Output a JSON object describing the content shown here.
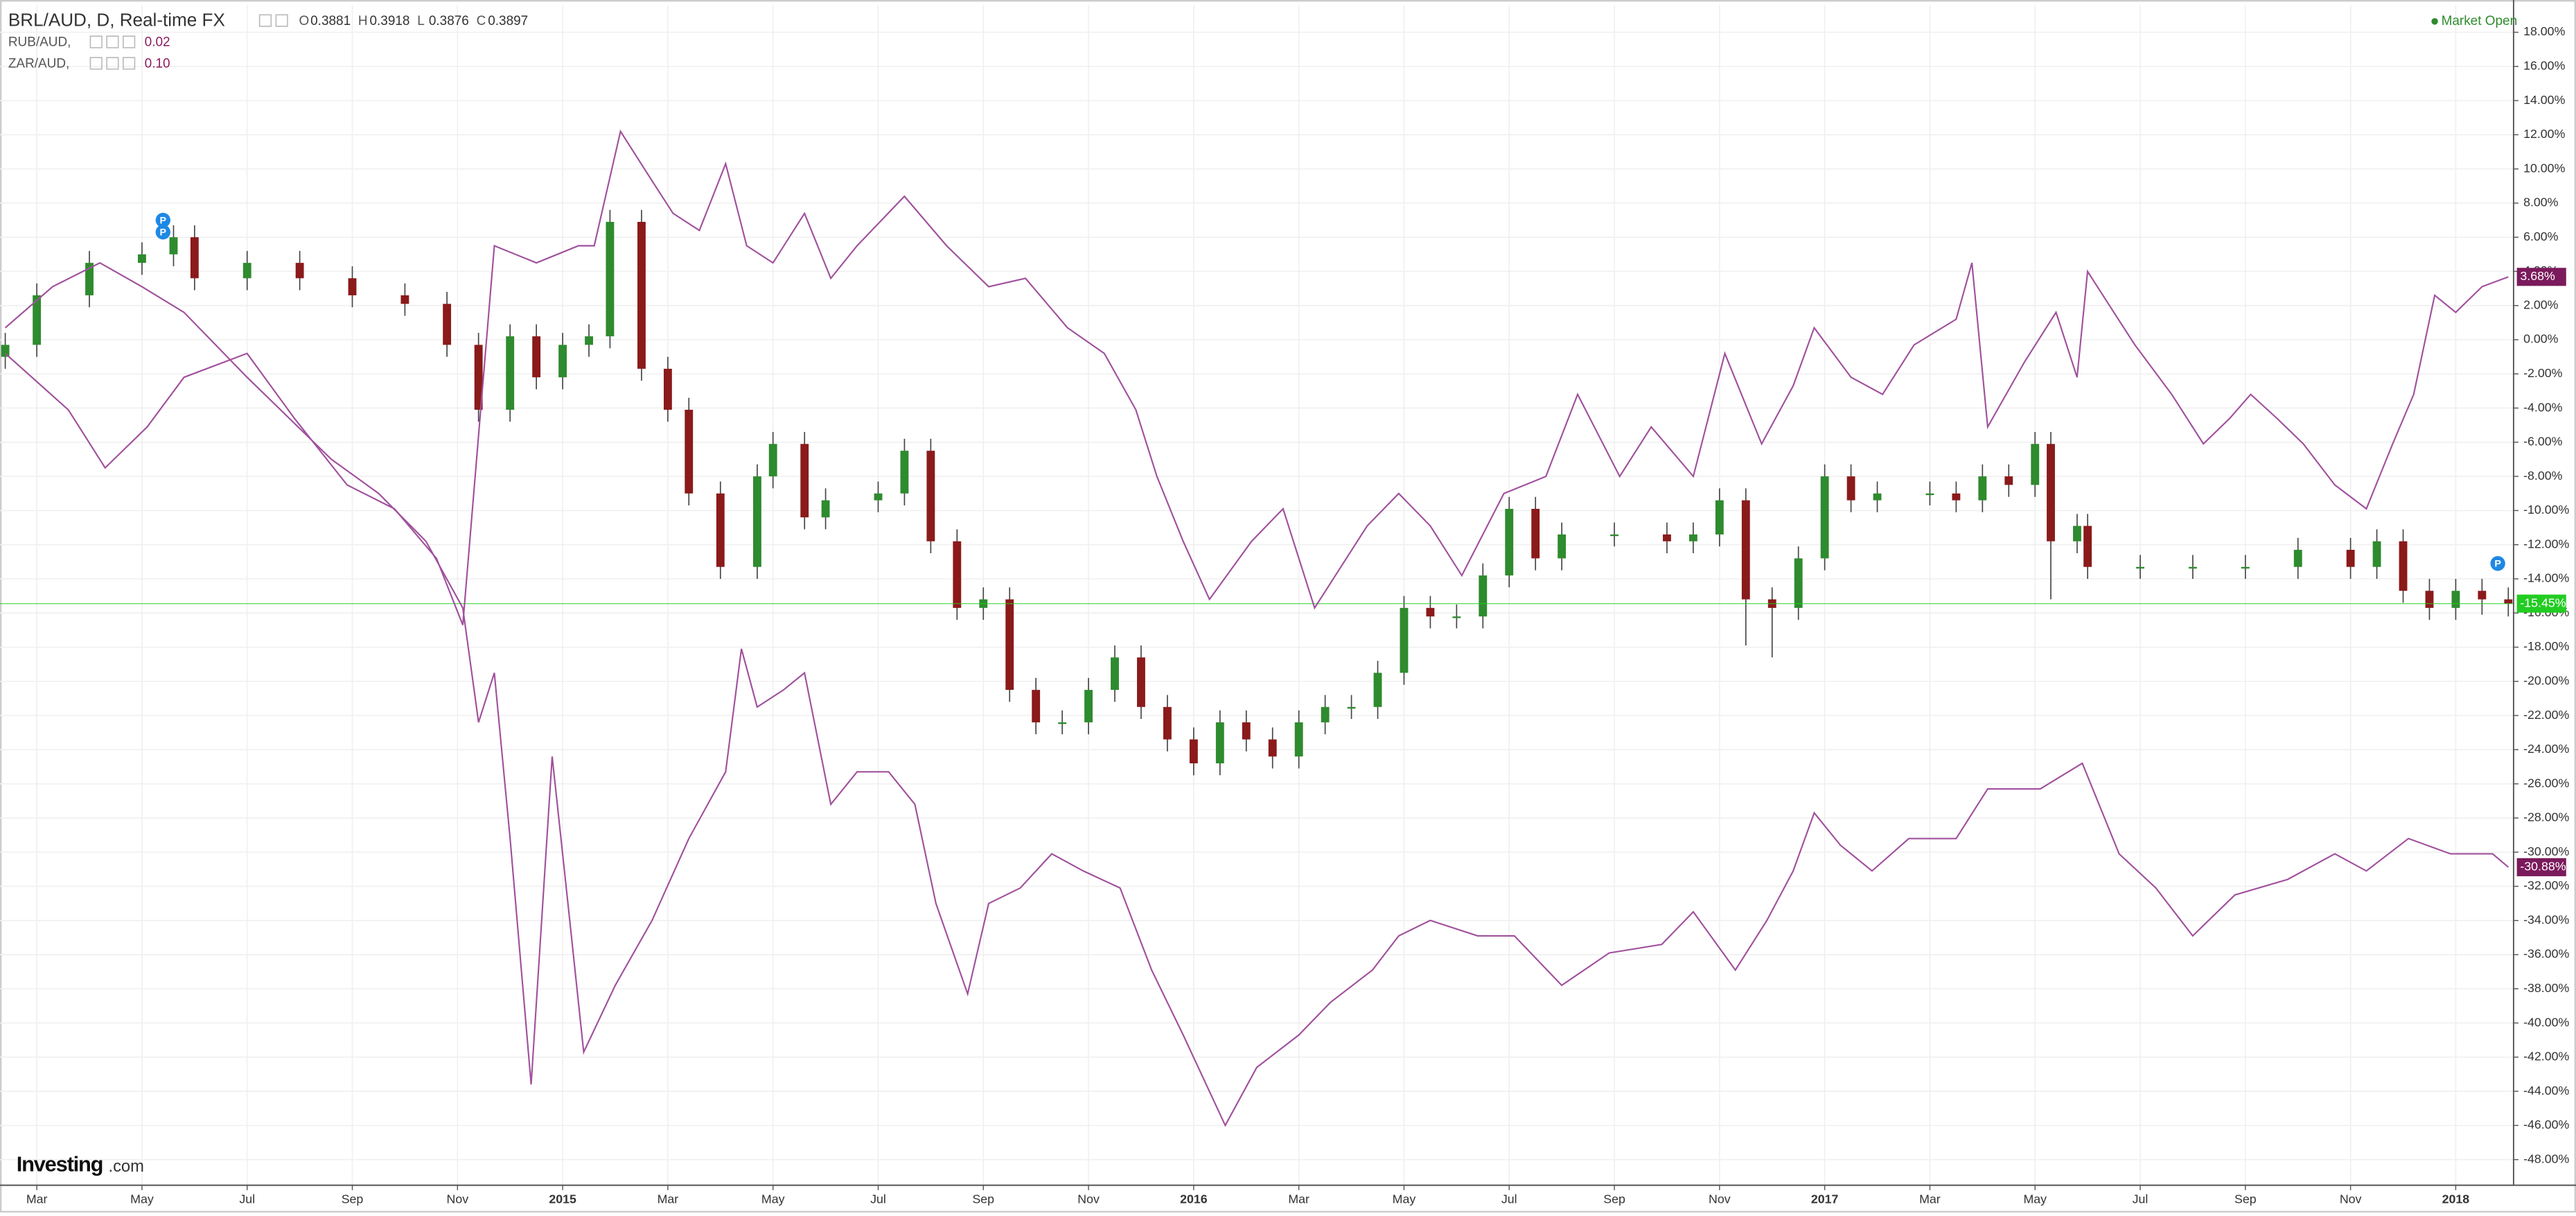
{
  "chart_data": {
    "type": "candlestick",
    "header": {
      "ohlc": [
        {
          "label": "O",
          "value": "0.3881"
        },
        {
          "label": "H",
          "value": "0.3918"
        },
        {
          "label": "L",
          "value": "0.3876"
        },
        {
          "label": "C",
          "value": "0.3897"
        }
      ],
      "compare_values": [
        "0.02",
        "0.10"
      ],
      "status": "Market Open",
      "logo": "Investing",
      "logo_suffix": ".com"
    },
    "xlim": [
      0.3,
      48.1
    ],
    "xticks": [
      {
        "value": 1,
        "label": "Mar"
      },
      {
        "value": 3,
        "label": "May"
      },
      {
        "value": 5,
        "label": "Jul"
      },
      {
        "value": 7,
        "label": "Sep"
      },
      {
        "value": 9,
        "label": "Nov"
      },
      {
        "value": 11,
        "label": "2015"
      },
      {
        "value": 13,
        "label": "Mar"
      },
      {
        "value": 15,
        "label": "May"
      },
      {
        "value": 17,
        "label": "Jul"
      },
      {
        "value": 19,
        "label": "Sep"
      },
      {
        "value": 21,
        "label": "Nov"
      },
      {
        "value": 23,
        "label": "2016"
      },
      {
        "value": 25,
        "label": "Mar"
      },
      {
        "value": 27,
        "label": "May"
      },
      {
        "value": 29,
        "label": "Jul"
      },
      {
        "value": 31,
        "label": "Sep"
      },
      {
        "value": 33,
        "label": "Nov"
      },
      {
        "value": 35,
        "label": "2017"
      },
      {
        "value": 37,
        "label": "Mar"
      },
      {
        "value": 39,
        "label": "May"
      },
      {
        "value": 41,
        "label": "Jul"
      },
      {
        "value": 43,
        "label": "Sep"
      },
      {
        "value": 45,
        "label": "Nov"
      },
      {
        "value": 47,
        "label": "2018"
      }
    ],
    "ylim": [
      -49.5,
      19.6
    ],
    "yticks": [
      {
        "value": 18,
        "label": "18.00%"
      },
      {
        "value": 16,
        "label": "16.00%"
      },
      {
        "value": 14,
        "label": "14.00%"
      },
      {
        "value": 12,
        "label": "12.00%"
      },
      {
        "value": 10,
        "label": "10.00%"
      },
      {
        "value": 8,
        "label": "8.00%"
      },
      {
        "value": 6,
        "label": "6.00%"
      },
      {
        "value": 4,
        "label": "4.00%"
      },
      {
        "value": 2,
        "label": "2.00%"
      },
      {
        "value": 0,
        "label": "0.00%"
      },
      {
        "value": -2,
        "label": "-2.00%"
      },
      {
        "value": -4,
        "label": "-4.00%"
      },
      {
        "value": -6,
        "label": "-6.00%"
      },
      {
        "value": -8,
        "label": "-8.00%"
      },
      {
        "value": -10,
        "label": "-10.00%"
      },
      {
        "value": -12,
        "label": "-12.00%"
      },
      {
        "value": -14,
        "label": "-14.00%"
      },
      {
        "value": -16,
        "label": "-16.00%"
      },
      {
        "value": -18,
        "label": "-18.00%"
      },
      {
        "value": -20,
        "label": "-20.00%"
      },
      {
        "value": -22,
        "label": "-22.00%"
      },
      {
        "value": -24,
        "label": "-24.00%"
      },
      {
        "value": -26,
        "label": "-26.00%"
      },
      {
        "value": -28,
        "label": "-28.00%"
      },
      {
        "value": -30,
        "label": "-30.00%"
      },
      {
        "value": -32,
        "label": "-32.00%"
      },
      {
        "value": -34,
        "label": "-34.00%"
      },
      {
        "value": -36,
        "label": "-36.00%"
      },
      {
        "value": -38,
        "label": "-38.00%"
      },
      {
        "value": -40,
        "label": "-40.00%"
      },
      {
        "value": -42,
        "label": "-42.00%"
      },
      {
        "value": -44,
        "label": "-44.00%"
      },
      {
        "value": -46,
        "label": "-46.00%"
      },
      {
        "value": -48,
        "label": "-48.00%"
      }
    ],
    "grid": true,
    "markers": {
      "label": "P",
      "x": [
        3.4,
        3.4,
        47.8
      ],
      "y": [
        7.0,
        6.3,
        -13.1
      ],
      "color": "#1e88e5"
    },
    "series": [
      {
        "name": "BRL/AUD, D, Real-time FX",
        "type": "candlestick",
        "up_color": "#2e8b2e",
        "down_color": "#8b1a1a",
        "wick_color": "#444444",
        "label_color": "#22cc22",
        "last_label": "-15.45%",
        "x": [
          0.4,
          1,
          2,
          3,
          3.6,
          4,
          5,
          6,
          7,
          8,
          8.8,
          9.4,
          10,
          10.5,
          11,
          11.5,
          11.9,
          12.5,
          13,
          13.4,
          14,
          14.7,
          15,
          15.6,
          16,
          17,
          17.5,
          18,
          18.5,
          19,
          19.5,
          20,
          20.5,
          21,
          21.5,
          22,
          22.5,
          23,
          23.5,
          24,
          24.5,
          25,
          25.5,
          26,
          26.5,
          27,
          27.5,
          28,
          28.5,
          29,
          29.5,
          30,
          31,
          32,
          32.5,
          33,
          33.5,
          34,
          34.5,
          35,
          35.5,
          36,
          37,
          37.5,
          38,
          38.5,
          39,
          39.3,
          39.8,
          40,
          41,
          42,
          43,
          44,
          45,
          45.5,
          46,
          46.5,
          47,
          47.5,
          48
        ],
        "open": [
          -1.0,
          -0.3,
          2.6,
          4.5,
          5.0,
          6.0,
          3.6,
          4.5,
          3.6,
          2.6,
          2.1,
          -0.3,
          -4.1,
          0.2,
          -2.2,
          -0.3,
          0.2,
          6.9,
          -1.7,
          -4.1,
          -9.0,
          -13.3,
          -8.0,
          -6.1,
          -10.4,
          -9.4,
          -9.0,
          -6.5,
          -11.8,
          -15.7,
          -15.2,
          -20.5,
          -22.4,
          -22.4,
          -20.5,
          -18.6,
          -21.5,
          -23.4,
          -24.8,
          -22.4,
          -23.4,
          -24.4,
          -22.4,
          -21.5,
          -21.5,
          -19.5,
          -15.7,
          -16.2,
          -16.2,
          -13.8,
          -9.9,
          -12.8,
          -11.4,
          -11.4,
          -11.8,
          -11.4,
          -9.4,
          -15.2,
          -15.7,
          -12.8,
          -8.0,
          -9.4,
          -9.0,
          -9.0,
          -9.4,
          -8.0,
          -8.5,
          -6.1,
          -11.8,
          -10.9,
          -13.3,
          -13.3,
          -13.3,
          -13.3,
          -12.3,
          -13.3,
          -11.8,
          -14.7,
          -15.7,
          -14.7,
          -15.2
        ],
        "high": [
          0.4,
          3.3,
          5.2,
          5.7,
          6.7,
          6.7,
          5.2,
          5.2,
          4.3,
          3.3,
          2.8,
          0.4,
          0.9,
          0.9,
          0.4,
          0.9,
          7.6,
          7.6,
          -1.0,
          -3.4,
          -8.3,
          -7.3,
          -5.4,
          -5.4,
          -8.7,
          -8.3,
          -5.8,
          -5.8,
          -11.1,
          -14.5,
          -14.5,
          -19.8,
          -21.7,
          -19.8,
          -17.9,
          -17.9,
          -20.8,
          -22.7,
          -21.7,
          -21.7,
          -22.7,
          -21.7,
          -20.8,
          -20.8,
          -18.8,
          -15.0,
          -15.0,
          -15.5,
          -13.1,
          -9.2,
          -9.2,
          -10.7,
          -10.7,
          -10.7,
          -10.7,
          -8.7,
          -8.7,
          -14.5,
          -12.1,
          -7.3,
          -7.3,
          -8.3,
          -8.3,
          -8.3,
          -7.3,
          -7.3,
          -5.4,
          -5.4,
          -10.2,
          -10.2,
          -12.6,
          -12.6,
          -12.6,
          -11.6,
          -11.6,
          -11.1,
          -11.1,
          -14.0,
          -14.0,
          -14.0,
          -14.5
        ],
        "low": [
          -1.7,
          -1.0,
          1.9,
          3.8,
          4.3,
          2.9,
          2.9,
          2.9,
          1.9,
          1.4,
          -1.0,
          -4.8,
          -4.8,
          -2.9,
          -2.9,
          -1.0,
          -0.5,
          -2.4,
          -4.8,
          -9.7,
          -14.0,
          -14.0,
          -8.7,
          -11.1,
          -11.1,
          -10.1,
          -9.7,
          -12.5,
          -16.4,
          -16.4,
          -21.2,
          -23.1,
          -23.1,
          -23.1,
          -21.2,
          -22.2,
          -24.1,
          -25.5,
          -25.5,
          -24.1,
          -25.1,
          -25.1,
          -23.1,
          -22.2,
          -22.2,
          -20.2,
          -16.9,
          -16.9,
          -16.9,
          -14.5,
          -13.5,
          -13.5,
          -12.1,
          -12.5,
          -12.5,
          -12.1,
          -17.9,
          -18.6,
          -16.4,
          -13.5,
          -10.1,
          -10.1,
          -9.7,
          -10.1,
          -10.1,
          -9.2,
          -9.2,
          -15.2,
          -12.5,
          -14.0,
          -14.0,
          -14.0,
          -14.0,
          -14.0,
          -14.0,
          -14.0,
          -15.4,
          -16.4,
          -16.4,
          -16.1,
          -16.2
        ],
        "close": [
          -0.3,
          2.6,
          4.5,
          5.0,
          6.0,
          3.6,
          4.5,
          3.6,
          2.6,
          2.1,
          -0.3,
          -4.1,
          0.2,
          -2.2,
          -0.3,
          0.2,
          6.9,
          -1.7,
          -4.1,
          -9.0,
          -13.3,
          -8.0,
          -6.1,
          -10.4,
          -9.4,
          -9.0,
          -6.5,
          -11.8,
          -15.7,
          -15.2,
          -20.5,
          -22.4,
          -22.4,
          -20.5,
          -18.6,
          -21.5,
          -23.4,
          -24.8,
          -22.4,
          -23.4,
          -24.4,
          -22.4,
          -21.5,
          -21.5,
          -19.5,
          -15.7,
          -16.2,
          -16.2,
          -13.8,
          -9.9,
          -12.8,
          -11.4,
          -11.4,
          -11.8,
          -11.4,
          -9.4,
          -15.2,
          -15.7,
          -12.8,
          -8.0,
          -9.4,
          -9.0,
          -9.0,
          -9.4,
          -8.0,
          -8.5,
          -6.1,
          -11.8,
          -10.9,
          -13.3,
          -13.3,
          -13.3,
          -13.3,
          -12.3,
          -13.3,
          -11.8,
          -14.7,
          -15.7,
          -14.7,
          -15.2,
          -15.45
        ]
      },
      {
        "name": "RUB/AUD,",
        "type": "line",
        "color": "#a0509c",
        "label_color": "#7b1a5c",
        "last_label": "-30.88%",
        "x": [
          0.4,
          1.3,
          2.2,
          3.0,
          3.8,
          5.0,
          6.6,
          7.5,
          8.4,
          9.1,
          9.4,
          9.7,
          10.0,
          10.4,
          10.8,
          11.1,
          11.4,
          12.0,
          12.7,
          13.4,
          14.1,
          14.4,
          14.7,
          15.2,
          15.6,
          16.1,
          16.6,
          17.2,
          17.7,
          18.1,
          18.7,
          19.1,
          19.7,
          20.3,
          20.9,
          21.6,
          22.2,
          22.8,
          23.6,
          24.2,
          25.0,
          25.6,
          26.4,
          26.9,
          27.5,
          28.4,
          29.1,
          30.0,
          30.9,
          31.9,
          32.5,
          33.3,
          33.9,
          34.4,
          34.8,
          35.3,
          35.9,
          36.6,
          37.5,
          38.1,
          39.1,
          39.9,
          40.6,
          41.3,
          42.0,
          42.8,
          43.8,
          44.7,
          45.3,
          46.1,
          46.9,
          47.7,
          48.0
        ],
        "values": [
          0.7,
          3.1,
          4.5,
          3.1,
          1.6,
          -2.2,
          -7.0,
          -9.0,
          -11.8,
          -15.7,
          -22.4,
          -19.5,
          -29.2,
          -43.6,
          -24.4,
          -33.0,
          -41.7,
          -37.8,
          -34.0,
          -29.2,
          -25.3,
          -18.1,
          -21.5,
          -20.5,
          -19.5,
          -27.2,
          -25.3,
          -25.3,
          -27.2,
          -33.0,
          -38.3,
          -33.0,
          -32.1,
          -30.1,
          -31.1,
          -32.1,
          -36.9,
          -40.7,
          -46.0,
          -42.6,
          -40.7,
          -38.8,
          -36.9,
          -34.9,
          -34.0,
          -34.9,
          -34.9,
          -37.8,
          -35.9,
          -35.4,
          -33.5,
          -36.9,
          -34.0,
          -31.1,
          -27.7,
          -29.6,
          -31.1,
          -29.2,
          -29.2,
          -26.3,
          -26.3,
          -24.8,
          -30.1,
          -32.1,
          -34.9,
          -32.5,
          -31.6,
          -30.1,
          -31.1,
          -29.2,
          -30.1,
          -30.1,
          -30.88
        ]
      },
      {
        "name": "ZAR/AUD,",
        "type": "line",
        "color": "#a0509c",
        "label_color": "#7b1a5c",
        "last_label": "3.68%",
        "x": [
          0.4,
          1.6,
          2.3,
          3.1,
          3.8,
          5.0,
          5.9,
          6.9,
          7.8,
          8.6,
          9.1,
          9.7,
          10.5,
          11.3,
          11.6,
          12.1,
          12.7,
          13.1,
          13.6,
          14.1,
          14.5,
          15.0,
          15.6,
          16.1,
          16.6,
          17.5,
          18.3,
          19.1,
          19.8,
          20.6,
          21.3,
          21.9,
          22.3,
          22.8,
          23.3,
          24.1,
          24.7,
          25.3,
          26.3,
          26.9,
          27.5,
          28.1,
          28.9,
          29.7,
          30.3,
          31.1,
          31.7,
          32.5,
          33.1,
          33.8,
          34.4,
          34.8,
          35.5,
          36.1,
          36.7,
          37.5,
          37.8,
          38.1,
          38.8,
          39.4,
          39.8,
          40.0,
          40.5,
          40.9,
          41.6,
          42.2,
          42.7,
          43.1,
          43.6,
          44.1,
          44.7,
          45.3,
          45.8,
          46.2,
          46.6,
          47.0,
          47.5,
          48.0
        ],
        "values": [
          -0.8,
          -4.1,
          -7.5,
          -5.1,
          -2.2,
          -0.8,
          -4.6,
          -8.5,
          -9.9,
          -12.8,
          -16.7,
          5.5,
          4.5,
          5.5,
          5.5,
          12.2,
          9.3,
          7.4,
          6.4,
          10.3,
          5.5,
          4.5,
          7.4,
          3.6,
          5.5,
          8.4,
          5.5,
          3.1,
          3.6,
          0.7,
          -0.8,
          -4.1,
          -8.0,
          -11.8,
          -15.2,
          -11.8,
          -9.9,
          -15.7,
          -10.9,
          -9.0,
          -10.9,
          -13.8,
          -9.0,
          -8.0,
          -3.2,
          -8.0,
          -5.1,
          -8.0,
          -0.8,
          -6.1,
          -2.7,
          0.7,
          -2.2,
          -3.2,
          -0.3,
          1.2,
          4.5,
          -5.1,
          -1.3,
          1.6,
          -2.2,
          4.0,
          1.6,
          -0.3,
          -3.2,
          -6.1,
          -4.6,
          -3.2,
          -4.6,
          -6.1,
          -8.5,
          -9.9,
          -6.1,
          -3.2,
          2.6,
          1.6,
          3.1,
          3.68
        ]
      }
    ]
  }
}
